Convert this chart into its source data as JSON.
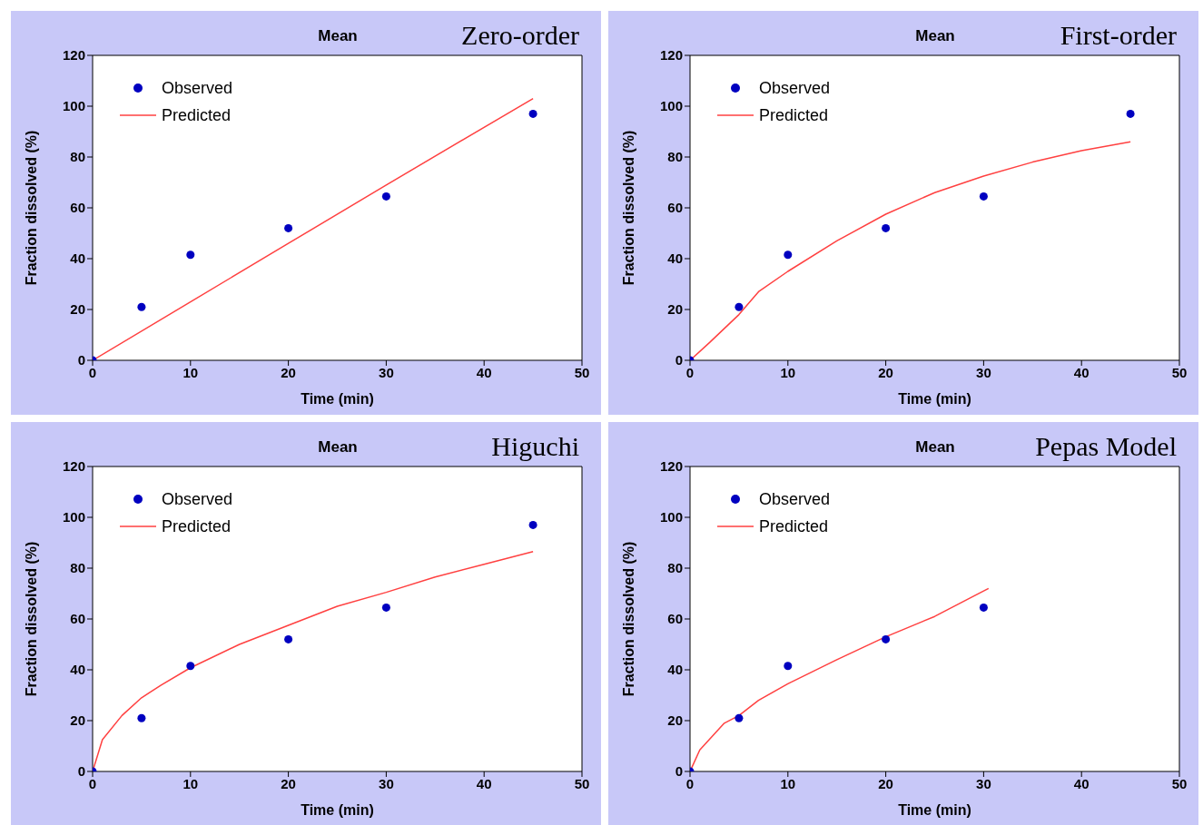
{
  "chart_data": [
    {
      "type": "scatter",
      "title": "Mean",
      "subtitle": "Zero-order",
      "xlabel": "Time (min)",
      "ylabel": "Fraction dissolved (%)",
      "xlim": [
        0,
        50
      ],
      "xticks": [
        0,
        10,
        20,
        30,
        40,
        50
      ],
      "ylim": [
        0,
        120
      ],
      "yticks": [
        0,
        20,
        40,
        60,
        80,
        100,
        120
      ],
      "grid": false,
      "legend": "top left",
      "series": [
        {
          "name": "Observed",
          "marker": "circle",
          "color": "#0000c0",
          "x": [
            0,
            5,
            10,
            20,
            30,
            45
          ],
          "values": [
            0,
            21,
            41.5,
            52,
            64.5,
            97
          ]
        },
        {
          "name": "Predicted",
          "type": "line",
          "marker": "none",
          "line_style": "solid",
          "color": "#ff4040",
          "x": [
            0,
            10,
            20,
            30,
            45
          ],
          "values": [
            0,
            23,
            46,
            69,
            103
          ]
        }
      ]
    },
    {
      "type": "scatter",
      "title": "Mean",
      "subtitle": "First-order",
      "xlabel": "Time (min)",
      "ylabel": "Fraction dissolved (%)",
      "xlim": [
        0,
        50
      ],
      "xticks": [
        0,
        10,
        20,
        30,
        40,
        50
      ],
      "ylim": [
        0,
        120
      ],
      "yticks": [
        0,
        20,
        40,
        60,
        80,
        100,
        120
      ],
      "grid": false,
      "legend": "top left",
      "series": [
        {
          "name": "Observed",
          "marker": "circle",
          "color": "#0000c0",
          "x": [
            0,
            5,
            10,
            20,
            30,
            45
          ],
          "values": [
            0,
            21,
            41.5,
            52,
            64.5,
            97
          ]
        },
        {
          "name": "Predicted",
          "type": "line",
          "marker": "none",
          "line_style": "solid",
          "color": "#ff4040",
          "x": [
            0,
            2,
            5,
            7,
            10,
            15,
            20,
            25,
            30,
            35,
            40,
            45
          ],
          "values": [
            0,
            7,
            18,
            27,
            35,
            47,
            57.5,
            66,
            72.5,
            78,
            82.5,
            86
          ]
        }
      ]
    },
    {
      "type": "scatter",
      "title": "Mean",
      "subtitle": "Higuchi",
      "xlabel": "Time (min)",
      "ylabel": "Fraction dissolved (%)",
      "xlim": [
        0,
        50
      ],
      "xticks": [
        0,
        10,
        20,
        30,
        40,
        50
      ],
      "ylim": [
        0,
        120
      ],
      "yticks": [
        0,
        20,
        40,
        60,
        80,
        100,
        120
      ],
      "grid": false,
      "legend": "top left",
      "series": [
        {
          "name": "Observed",
          "marker": "circle",
          "color": "#0000c0",
          "x": [
            0,
            5,
            10,
            20,
            30,
            45
          ],
          "values": [
            0,
            21,
            41.5,
            52,
            64.5,
            97
          ]
        },
        {
          "name": "Predicted",
          "type": "line",
          "marker": "none",
          "line_style": "solid",
          "color": "#ff4040",
          "x": [
            0,
            1,
            3,
            5,
            7,
            10,
            15,
            20,
            25,
            30,
            35,
            40,
            45
          ],
          "values": [
            0,
            12.5,
            22,
            29,
            34,
            40.8,
            50,
            57.5,
            65,
            70.5,
            76.5,
            81.5,
            86.5
          ]
        }
      ]
    },
    {
      "type": "scatter",
      "title": "Mean",
      "subtitle": "Pepas Model",
      "xlabel": "Time (min)",
      "ylabel": "Fraction dissolved (%)",
      "xlim": [
        0,
        50
      ],
      "xticks": [
        0,
        10,
        20,
        30,
        40,
        50
      ],
      "ylim": [
        0,
        120
      ],
      "yticks": [
        0,
        20,
        40,
        60,
        80,
        100,
        120
      ],
      "grid": false,
      "legend": "top left",
      "series": [
        {
          "name": "Observed",
          "marker": "circle",
          "color": "#0000c0",
          "x": [
            0,
            5,
            10,
            20,
            30
          ],
          "values": [
            0,
            21,
            41.5,
            52,
            64.5
          ]
        },
        {
          "name": "Predicted",
          "type": "line",
          "marker": "none",
          "line_style": "solid",
          "color": "#ff4040",
          "x": [
            0,
            1,
            3.5,
            5,
            7,
            10,
            15,
            20,
            25,
            30,
            30.5
          ],
          "values": [
            0,
            8.5,
            19,
            22,
            28,
            34.5,
            44,
            53,
            61,
            71,
            72
          ]
        }
      ]
    }
  ]
}
